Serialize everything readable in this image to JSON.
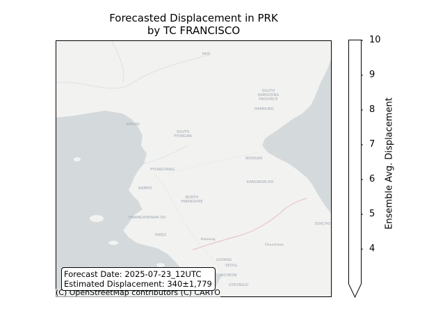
{
  "title": {
    "line1": "Forecasted Displacement in PRK",
    "line2": "by TC FRANCISCO"
  },
  "info_box": {
    "forecast_date": "Forecast Date: 2025-07-23_12UTC",
    "estimated_displacement": "Estimated Displacement: 340±1,779"
  },
  "attribution": "(C) OpenStreetMap contributors (C) CARTO",
  "colorbar": {
    "label": "Ensemble Avg. Displacement",
    "ticks": [
      "10",
      "9",
      "8",
      "7",
      "6",
      "5",
      "4"
    ],
    "range": [
      3,
      10
    ],
    "extend": "min",
    "fill_color": "#ffffff"
  },
  "map_labels": {
    "south_hamgyong": "SOUTH HAMGYONG PROVINCE",
    "south_pyongan": "SOUTH PYONGAN",
    "north_hwanghae": "NORTH HWANGHAE",
    "south_hwanghae": "HWANGHAENAM-DO",
    "kangwon": "KANGWON-DO",
    "pyongyang": "PYONGYANG",
    "nampo": "NAMPO",
    "haeju": "HAEJU",
    "hamhung": "HAMHUNG",
    "wonsan": "WONSAN",
    "seoul": "SEOUL",
    "sinuiju": "SINUIJU",
    "kaesong": "Kaesong",
    "incheon": "INCHEON",
    "goyang": "GOYANG",
    "gyeonggi": "GYEONGGI",
    "sokcho": "SOKCHO",
    "chuncheon": "Chuncheon",
    "nhs": "NHS"
  },
  "colors": {
    "sea": "#d4dadc",
    "land": "#f2f2f1",
    "border": "#e6c8c8"
  }
}
